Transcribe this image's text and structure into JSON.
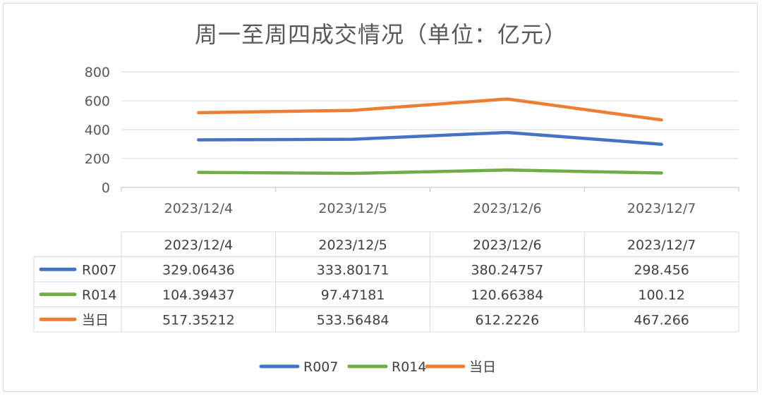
{
  "chart_data": {
    "type": "line",
    "title": "周一至周四成交情况（单位：亿元）",
    "categories": [
      "2023/12/4",
      "2023/12/5",
      "2023/12/6",
      "2023/12/7"
    ],
    "ylim": [
      0,
      800
    ],
    "yticks": [
      "0",
      "200",
      "400",
      "600",
      "800"
    ],
    "grid": true,
    "legend": "bottom",
    "data_table": true,
    "series": [
      {
        "name": "R007",
        "color": "#4472C4",
        "values": [
          329.06436,
          333.80171,
          380.24757,
          298.456
        ],
        "labels": [
          "329.06436",
          "333.80171",
          "380.24757",
          "298.456"
        ]
      },
      {
        "name": "R014",
        "color": "#70AD47",
        "values": [
          104.39437,
          97.47181,
          120.66384,
          100.12
        ],
        "labels": [
          "104.39437",
          "97.47181",
          "120.66384",
          "100.12"
        ]
      },
      {
        "name": "当日",
        "color": "#ED7D31",
        "values": [
          517.35212,
          533.56484,
          612.2226,
          467.266
        ],
        "labels": [
          "517.35212",
          "533.56484",
          "612.2226",
          "467.266"
        ]
      }
    ]
  }
}
